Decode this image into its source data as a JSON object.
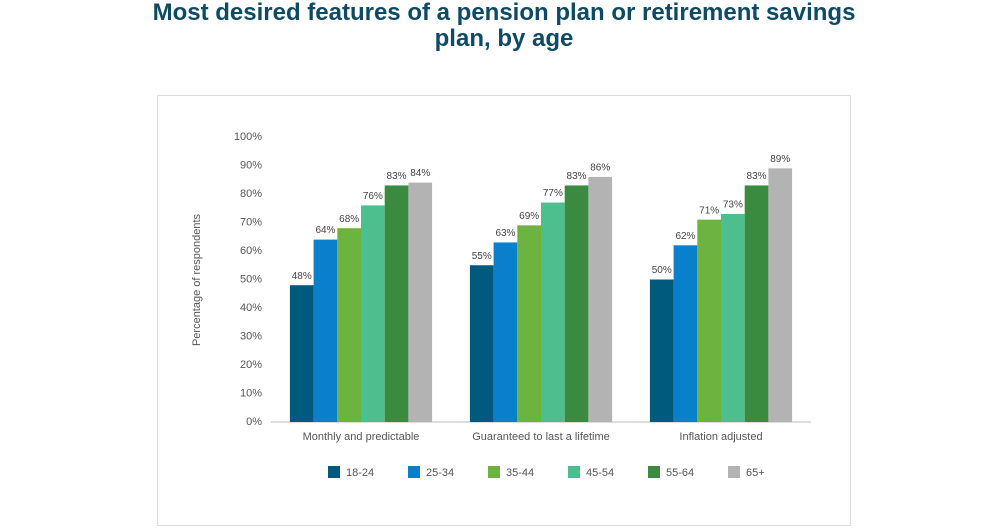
{
  "chart_data": {
    "type": "bar",
    "title": "Most desired features of a pension plan or retirement savings plan, by age",
    "y_label": "Percentage of respondents",
    "categories": [
      "Monthly and predictable",
      "Guaranteed to last a lifetime",
      "Inflation adjusted"
    ],
    "series": [
      {
        "name": "18-24",
        "color": "#005a7e",
        "values": [
          48,
          55,
          50
        ],
        "value_labels": [
          "48%",
          "55%",
          "50%"
        ]
      },
      {
        "name": "25-34",
        "color": "#0a7fcb",
        "values": [
          64,
          63,
          62
        ],
        "value_labels": [
          "64%",
          "63%",
          "62%"
        ]
      },
      {
        "name": "35-44",
        "color": "#6db33f",
        "values": [
          68,
          69,
          71
        ],
        "value_labels": [
          "68%",
          "69%",
          "71%"
        ]
      },
      {
        "name": "45-54",
        "color": "#4dbf8e",
        "values": [
          76,
          77,
          73
        ],
        "value_labels": [
          "76%",
          "77%",
          "73%"
        ]
      },
      {
        "name": "55-64",
        "color": "#3a8a40",
        "values": [
          83,
          83,
          83
        ],
        "value_labels": [
          "83%",
          "83%",
          "83%"
        ]
      },
      {
        "name": "65+",
        "color": "#b3b3b3",
        "values": [
          84,
          86,
          89
        ],
        "value_labels": [
          "84%",
          "86%",
          "89%"
        ]
      }
    ],
    "ylim": [
      0,
      100
    ],
    "yticks": [
      {
        "value": 0,
        "label": "0%"
      },
      {
        "value": 10,
        "label": "10%"
      },
      {
        "value": 20,
        "label": "20%"
      },
      {
        "value": 30,
        "label": "30%"
      },
      {
        "value": 40,
        "label": "40%"
      },
      {
        "value": 50,
        "label": "50%"
      },
      {
        "value": 60,
        "label": "60%"
      },
      {
        "value": 70,
        "label": "70%"
      },
      {
        "value": 80,
        "label": "80%"
      },
      {
        "value": 90,
        "label": "90%"
      },
      {
        "value": 100,
        "label": "100%"
      }
    ],
    "grid": false
  }
}
